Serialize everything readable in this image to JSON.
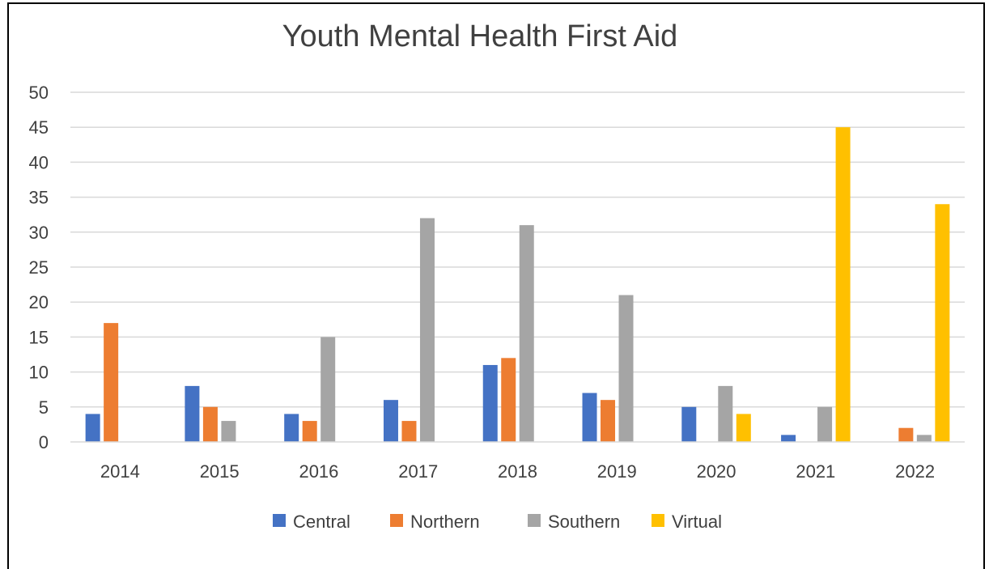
{
  "chart_data": {
    "type": "bar",
    "title": "Youth Mental Health First Aid",
    "xlabel": "",
    "ylabel": "",
    "categories": [
      "2014",
      "2015",
      "2016",
      "2017",
      "2018",
      "2019",
      "2020",
      "2021",
      "2022"
    ],
    "ylim": [
      0,
      50
    ],
    "yticks": [
      0,
      5,
      10,
      15,
      20,
      25,
      30,
      35,
      40,
      45,
      50
    ],
    "grid": true,
    "legend_position": "bottom",
    "series": [
      {
        "name": "Central",
        "color": "#4472C4",
        "values": [
          4,
          8,
          4,
          6,
          11,
          7,
          5,
          1,
          0
        ]
      },
      {
        "name": "Northern",
        "color": "#ED7D31",
        "values": [
          17,
          5,
          3,
          3,
          12,
          6,
          0,
          0,
          2
        ]
      },
      {
        "name": "Southern",
        "color": "#A5A5A5",
        "values": [
          0,
          3,
          15,
          32,
          31,
          21,
          8,
          5,
          1
        ]
      },
      {
        "name": "Virtual",
        "color": "#FFC000",
        "values": [
          0,
          0,
          0,
          0,
          0,
          0,
          4,
          45,
          34
        ]
      }
    ]
  }
}
